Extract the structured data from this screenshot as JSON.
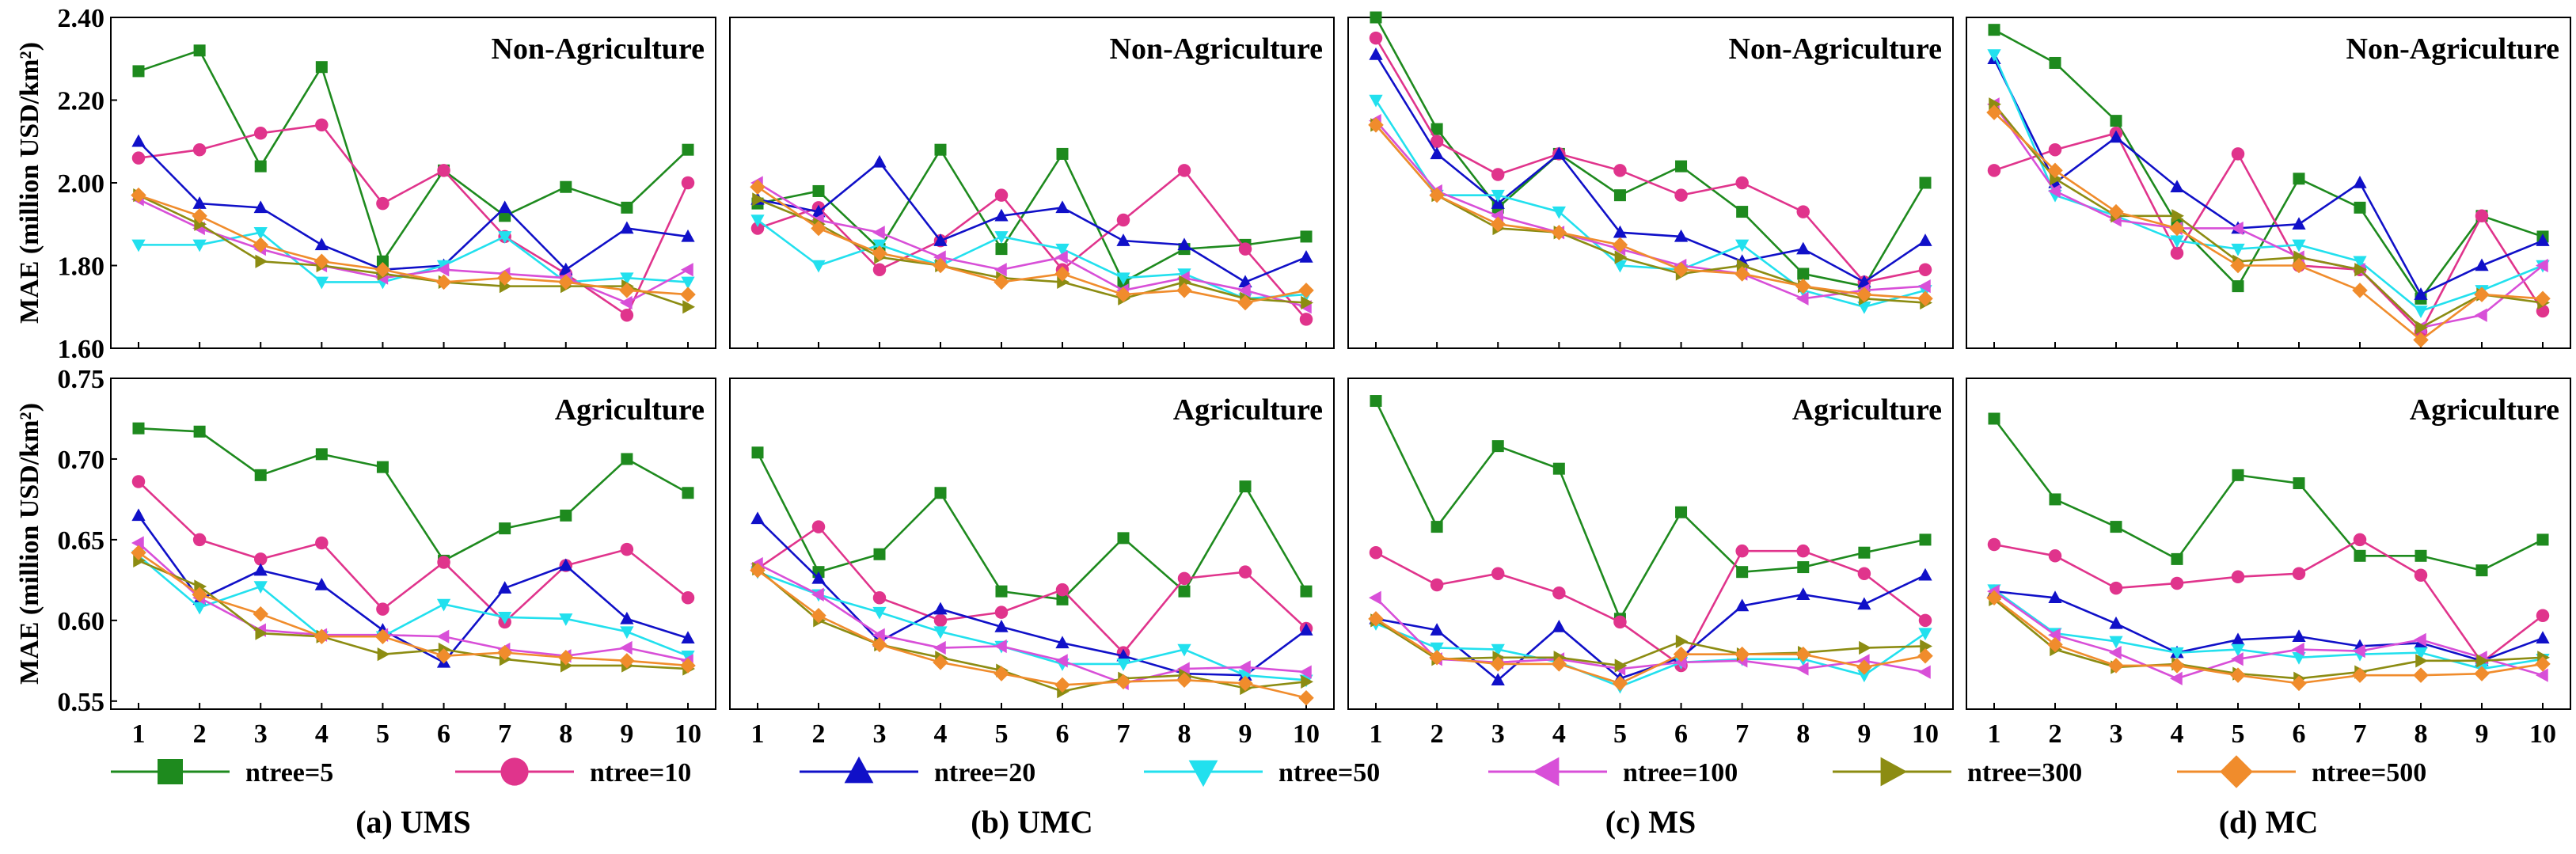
{
  "chart_data": {
    "type": "line",
    "x": [
      1,
      2,
      3,
      4,
      5,
      6,
      7,
      8,
      9,
      10
    ],
    "legend": [
      {
        "name": "ntree=5",
        "color": "#1e8a1e",
        "marker": "square"
      },
      {
        "name": "ntree=10",
        "color": "#e0348c",
        "marker": "circle"
      },
      {
        "name": "ntree=20",
        "color": "#1010c8",
        "marker": "triangle-up"
      },
      {
        "name": "ntree=50",
        "color": "#22e0ee",
        "marker": "triangle-down"
      },
      {
        "name": "ntree=100",
        "color": "#d84fd8",
        "marker": "triangle-left"
      },
      {
        "name": "ntree=300",
        "color": "#8c8c12",
        "marker": "triangle-right"
      },
      {
        "name": "ntree=500",
        "color": "#f08c2c",
        "marker": "diamond"
      }
    ],
    "rows": [
      {
        "ylabel": "MAE (million USD/km²)",
        "ylim": [
          1.6,
          2.4
        ],
        "yticks": [
          "1.60",
          "1.80",
          "2.00",
          "2.20",
          "2.40"
        ],
        "yvals": [
          1.6,
          1.8,
          2.0,
          2.2,
          2.4
        ]
      },
      {
        "ylabel": "MAE (million USD/km²)",
        "ylim": [
          0.545,
          0.75
        ],
        "yticks": [
          "0.55",
          "0.60",
          "0.65",
          "0.70",
          "0.75"
        ],
        "yvals": [
          0.55,
          0.6,
          0.65,
          0.7,
          0.75
        ]
      }
    ],
    "columns": [
      {
        "caption": "(a) UMS"
      },
      {
        "caption": "(b) UMC"
      },
      {
        "caption": "(c) MS"
      },
      {
        "caption": "(d) MC"
      }
    ],
    "panels": [
      {
        "row": 0,
        "col": 0,
        "title": "Non-Agriculture",
        "series": [
          [
            2.27,
            2.32,
            2.04,
            2.28,
            1.81,
            2.03,
            1.92,
            1.99,
            1.94,
            2.08
          ],
          [
            2.06,
            2.08,
            2.12,
            2.14,
            1.95,
            2.03,
            1.87,
            1.78,
            1.68,
            2.0
          ],
          [
            2.1,
            1.95,
            1.94,
            1.85,
            1.79,
            1.8,
            1.94,
            1.79,
            1.89,
            1.87
          ],
          [
            1.85,
            1.85,
            1.88,
            1.76,
            1.76,
            1.8,
            1.87,
            1.76,
            1.77,
            1.76
          ],
          [
            1.96,
            1.89,
            1.84,
            1.8,
            1.77,
            1.79,
            1.78,
            1.77,
            1.71,
            1.79
          ],
          [
            1.97,
            1.9,
            1.81,
            1.8,
            1.78,
            1.76,
            1.75,
            1.75,
            1.75,
            1.7
          ],
          [
            1.97,
            1.92,
            1.85,
            1.81,
            1.79,
            1.76,
            1.77,
            1.76,
            1.74,
            1.73
          ]
        ]
      },
      {
        "row": 0,
        "col": 1,
        "title": "Non-Agriculture",
        "series": [
          [
            1.95,
            1.98,
            1.84,
            2.08,
            1.84,
            2.07,
            1.76,
            1.84,
            1.85,
            1.87
          ],
          [
            1.89,
            1.94,
            1.79,
            1.86,
            1.97,
            1.79,
            1.91,
            2.03,
            1.84,
            1.67
          ],
          [
            1.96,
            1.93,
            2.05,
            1.86,
            1.92,
            1.94,
            1.86,
            1.85,
            1.76,
            1.82
          ],
          [
            1.91,
            1.8,
            1.85,
            1.8,
            1.87,
            1.84,
            1.77,
            1.78,
            1.72,
            1.73
          ],
          [
            2.0,
            1.91,
            1.88,
            1.82,
            1.79,
            1.82,
            1.74,
            1.77,
            1.74,
            1.7
          ],
          [
            1.96,
            1.9,
            1.82,
            1.8,
            1.77,
            1.76,
            1.72,
            1.76,
            1.72,
            1.71
          ],
          [
            1.99,
            1.89,
            1.83,
            1.8,
            1.76,
            1.78,
            1.73,
            1.74,
            1.71,
            1.74
          ]
        ]
      },
      {
        "row": 0,
        "col": 2,
        "title": "Non-Agriculture",
        "series": [
          [
            2.4,
            2.13,
            1.94,
            2.07,
            1.97,
            2.04,
            1.93,
            1.78,
            1.75,
            2.0
          ],
          [
            2.35,
            2.1,
            2.02,
            2.07,
            2.03,
            1.97,
            2.0,
            1.93,
            1.76,
            1.79
          ],
          [
            2.31,
            2.07,
            1.95,
            2.07,
            1.88,
            1.87,
            1.81,
            1.84,
            1.76,
            1.86
          ],
          [
            2.2,
            1.97,
            1.97,
            1.93,
            1.8,
            1.79,
            1.85,
            1.74,
            1.7,
            1.74
          ],
          [
            2.15,
            1.98,
            1.92,
            1.88,
            1.84,
            1.8,
            1.78,
            1.72,
            1.74,
            1.75
          ],
          [
            2.14,
            1.97,
            1.89,
            1.88,
            1.82,
            1.78,
            1.8,
            1.75,
            1.72,
            1.71
          ],
          [
            2.14,
            1.97,
            1.9,
            1.88,
            1.85,
            1.79,
            1.78,
            1.75,
            1.73,
            1.72
          ]
        ]
      },
      {
        "row": 0,
        "col": 3,
        "title": "Non-Agriculture",
        "series": [
          [
            2.37,
            2.29,
            2.15,
            1.9,
            1.75,
            2.01,
            1.94,
            1.72,
            1.92,
            1.87
          ],
          [
            2.03,
            2.08,
            2.12,
            1.83,
            2.07,
            1.8,
            1.79,
            1.64,
            1.92,
            1.69
          ],
          [
            2.3,
            2.0,
            2.11,
            1.99,
            1.89,
            1.9,
            2.0,
            1.73,
            1.8,
            1.86
          ],
          [
            2.31,
            1.97,
            1.92,
            1.86,
            1.84,
            1.85,
            1.81,
            1.69,
            1.74,
            1.8
          ],
          [
            2.19,
            1.98,
            1.91,
            1.89,
            1.89,
            1.82,
            1.79,
            1.65,
            1.68,
            1.8
          ],
          [
            2.19,
            2.01,
            1.92,
            1.92,
            1.81,
            1.82,
            1.79,
            1.65,
            1.73,
            1.71
          ],
          [
            2.17,
            2.03,
            1.93,
            1.89,
            1.8,
            1.8,
            1.74,
            1.62,
            1.73,
            1.72
          ]
        ]
      },
      {
        "row": 1,
        "col": 0,
        "title": "Agriculture",
        "series": [
          [
            0.719,
            0.717,
            0.69,
            0.703,
            0.695,
            0.637,
            0.657,
            0.665,
            0.7,
            0.679
          ],
          [
            0.686,
            0.65,
            0.638,
            0.648,
            0.607,
            0.636,
            0.599,
            0.634,
            0.644,
            0.614
          ],
          [
            0.665,
            0.613,
            0.631,
            0.622,
            0.594,
            0.574,
            0.62,
            0.634,
            0.601,
            0.589
          ],
          [
            0.64,
            0.608,
            0.621,
            0.59,
            0.59,
            0.61,
            0.602,
            0.601,
            0.593,
            0.578
          ],
          [
            0.648,
            0.614,
            0.594,
            0.591,
            0.591,
            0.59,
            0.582,
            0.578,
            0.583,
            0.575
          ],
          [
            0.637,
            0.621,
            0.592,
            0.59,
            0.579,
            0.582,
            0.576,
            0.572,
            0.572,
            0.57
          ],
          [
            0.642,
            0.616,
            0.604,
            0.59,
            0.59,
            0.578,
            0.58,
            0.577,
            0.575,
            0.572
          ]
        ]
      },
      {
        "row": 1,
        "col": 1,
        "title": "Agriculture",
        "series": [
          [
            0.704,
            0.63,
            0.641,
            0.679,
            0.618,
            0.613,
            0.651,
            0.618,
            0.683,
            0.618
          ],
          [
            0.632,
            0.658,
            0.614,
            0.6,
            0.605,
            0.619,
            0.58,
            0.626,
            0.63,
            0.595
          ],
          [
            0.663,
            0.626,
            0.587,
            0.607,
            0.596,
            0.586,
            0.578,
            0.567,
            0.566,
            0.594
          ],
          [
            0.63,
            0.616,
            0.605,
            0.593,
            0.584,
            0.573,
            0.573,
            0.582,
            0.566,
            0.563
          ],
          [
            0.635,
            0.616,
            0.591,
            0.583,
            0.584,
            0.575,
            0.561,
            0.57,
            0.571,
            0.568
          ],
          [
            0.632,
            0.6,
            0.585,
            0.577,
            0.569,
            0.556,
            0.564,
            0.566,
            0.558,
            0.562
          ],
          [
            0.631,
            0.603,
            0.585,
            0.574,
            0.567,
            0.56,
            0.562,
            0.563,
            0.561,
            0.552
          ]
        ]
      },
      {
        "row": 1,
        "col": 2,
        "title": "Agriculture",
        "series": [
          [
            0.736,
            0.658,
            0.708,
            0.694,
            0.601,
            0.667,
            0.63,
            0.633,
            0.642,
            0.65
          ],
          [
            0.642,
            0.622,
            0.629,
            0.617,
            0.599,
            0.572,
            0.643,
            0.643,
            0.629,
            0.6
          ],
          [
            0.601,
            0.594,
            0.563,
            0.596,
            0.564,
            0.577,
            0.609,
            0.616,
            0.61,
            0.628
          ],
          [
            0.598,
            0.583,
            0.582,
            0.574,
            0.559,
            0.574,
            0.576,
            0.576,
            0.566,
            0.592
          ],
          [
            0.614,
            0.576,
            0.574,
            0.576,
            0.57,
            0.574,
            0.575,
            0.57,
            0.575,
            0.568
          ],
          [
            0.6,
            0.576,
            0.577,
            0.577,
            0.572,
            0.587,
            0.579,
            0.58,
            0.583,
            0.584
          ],
          [
            0.601,
            0.577,
            0.573,
            0.573,
            0.561,
            0.579,
            0.579,
            0.579,
            0.571,
            0.578
          ]
        ]
      },
      {
        "row": 1,
        "col": 3,
        "title": "Agriculture",
        "series": [
          [
            0.725,
            0.675,
            0.658,
            0.638,
            0.69,
            0.685,
            0.64,
            0.64,
            0.631,
            0.65
          ],
          [
            0.647,
            0.64,
            0.62,
            0.623,
            0.627,
            0.629,
            0.65,
            0.628,
            0.574,
            0.603
          ],
          [
            0.618,
            0.614,
            0.598,
            0.58,
            0.588,
            0.59,
            0.584,
            0.586,
            0.575,
            0.589
          ],
          [
            0.619,
            0.592,
            0.587,
            0.58,
            0.582,
            0.577,
            0.579,
            0.58,
            0.57,
            0.576
          ],
          [
            0.618,
            0.591,
            0.58,
            0.564,
            0.576,
            0.582,
            0.581,
            0.588,
            0.577,
            0.566
          ],
          [
            0.613,
            0.582,
            0.571,
            0.573,
            0.567,
            0.564,
            0.568,
            0.575,
            0.575,
            0.577
          ],
          [
            0.614,
            0.585,
            0.572,
            0.572,
            0.566,
            0.561,
            0.566,
            0.566,
            0.567,
            0.573
          ]
        ]
      }
    ]
  }
}
